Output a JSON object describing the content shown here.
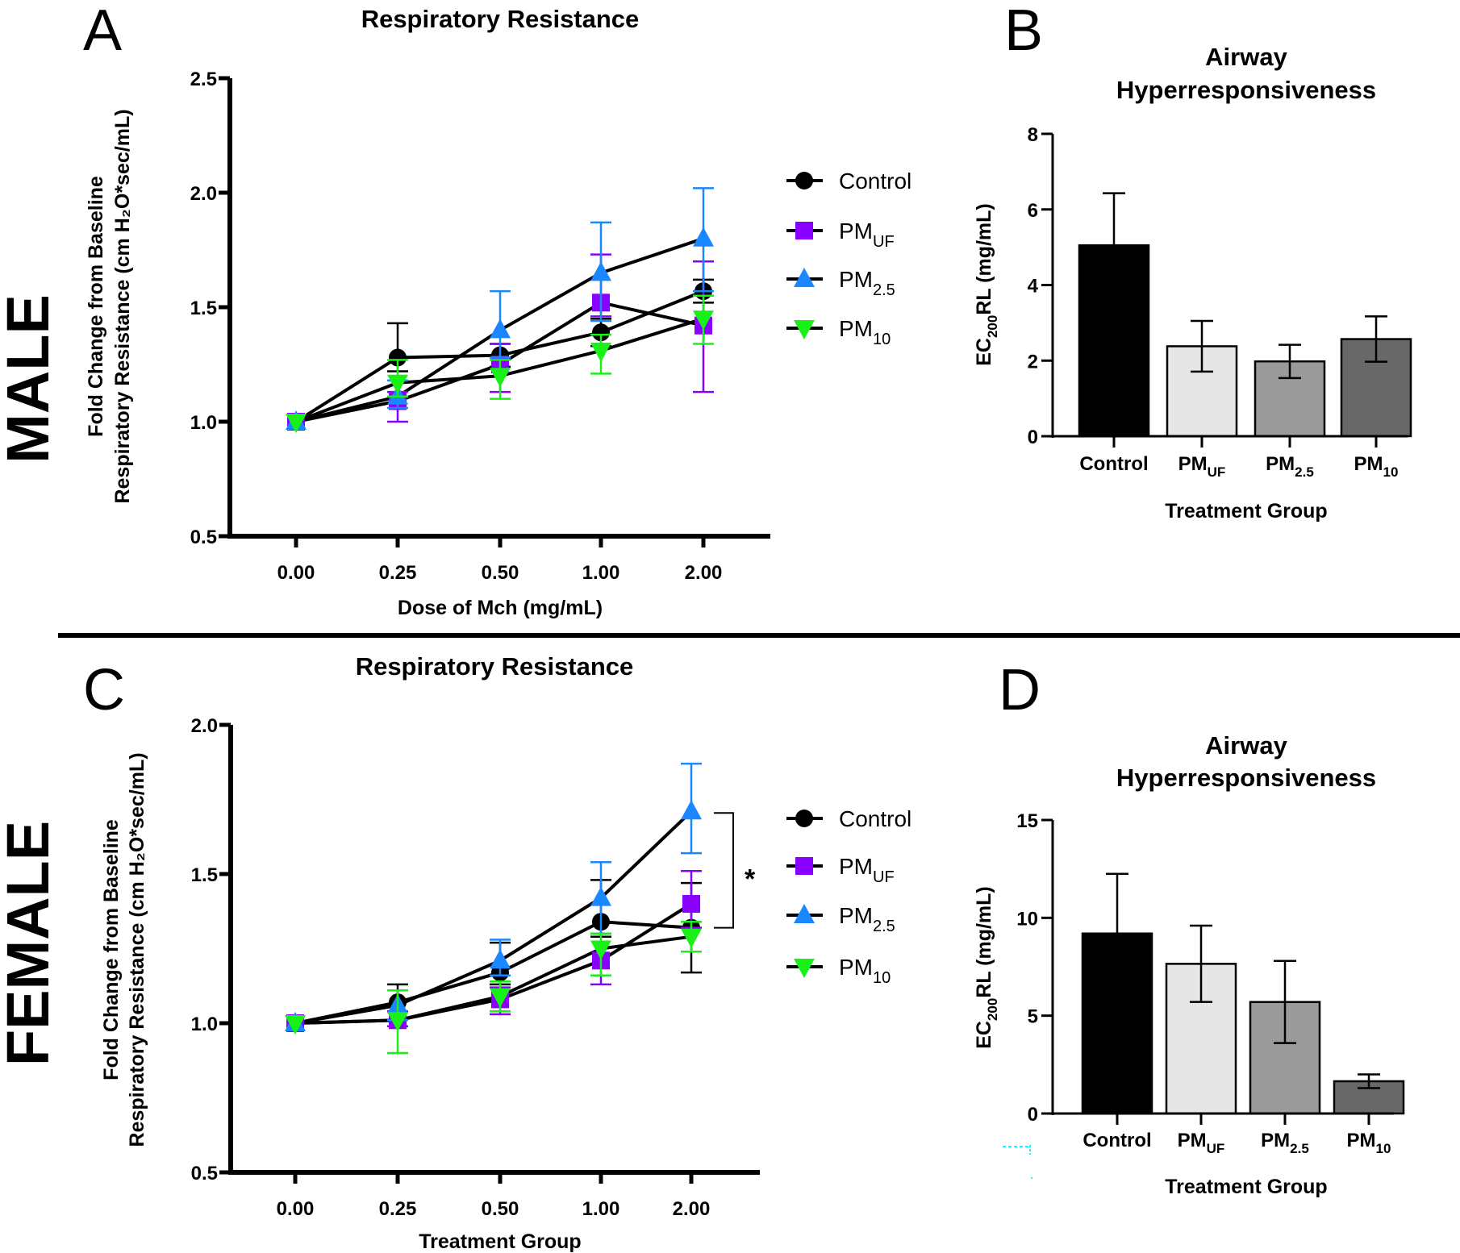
{
  "figure": {
    "panel_letters": [
      "A",
      "B",
      "C",
      "D"
    ],
    "sex_labels": {
      "male": "MALE",
      "female": "FEMALE"
    }
  },
  "colors": {
    "Control": "#000000",
    "PM_UF": "#8a00ff",
    "PM_2.5": "#1a86ff",
    "PM_10": "#18f018",
    "bar_Control": "#000000",
    "bar_PM_UF": "#e6e6e6",
    "bar_PM_2.5": "#9a9a9a",
    "bar_PM_10": "#686868"
  },
  "chart_data": [
    {
      "id": "A",
      "type": "line",
      "title": "Respiratory Resistance",
      "xlabel": "Dose of Mch (mg/mL)",
      "ylabel_line1": "Fold Change from Baseline",
      "ylabel_line2": "Respiratory Resistance (cm H₂O*sec/mL)",
      "categories": [
        "0.00",
        "0.25",
        "0.50",
        "1.00",
        "2.00"
      ],
      "ylim": [
        0.5,
        2.5
      ],
      "yticks": [
        "0.5",
        "1.0",
        "1.5",
        "2.0",
        "2.5"
      ],
      "legend_position": "right",
      "series": [
        {
          "name": "Control",
          "label": "Control",
          "sub": "",
          "marker": "circle",
          "values": [
            1.0,
            1.28,
            1.29,
            1.39,
            1.57
          ],
          "err_up": [
            0,
            0.15,
            0.05,
            0.06,
            0.05
          ],
          "err_down": [
            0,
            0.06,
            0.05,
            0.06,
            0.05
          ]
        },
        {
          "name": "PM_UF",
          "label": "PM",
          "sub": "UF",
          "marker": "square",
          "values": [
            1.0,
            1.09,
            1.25,
            1.52,
            1.42
          ],
          "err_up": [
            0,
            0.04,
            0.09,
            0.21,
            0.28
          ],
          "err_down": [
            0,
            0.09,
            0.12,
            0.06,
            0.29
          ]
        },
        {
          "name": "PM_2.5",
          "label": "PM",
          "sub": "2.5",
          "marker": "triangle-up",
          "values": [
            1.0,
            1.11,
            1.4,
            1.65,
            1.8
          ],
          "err_up": [
            0,
            0.07,
            0.17,
            0.22,
            0.22
          ],
          "err_down": [
            0,
            0.05,
            0.12,
            0.21,
            0.23
          ]
        },
        {
          "name": "PM_10",
          "label": "PM",
          "sub": "10",
          "marker": "triangle-down",
          "values": [
            1.0,
            1.17,
            1.2,
            1.31,
            1.45
          ],
          "err_up": [
            0,
            0.1,
            0.07,
            0.07,
            0.1
          ],
          "err_down": [
            0,
            0.06,
            0.1,
            0.1,
            0.11
          ]
        }
      ]
    },
    {
      "id": "B",
      "type": "bar",
      "title_line1": "Airway",
      "title_line2": "Hyperresponsiveness",
      "xlabel": "Treatment Group",
      "ylabel_main": "EC",
      "ylabel_sub": "200",
      "ylabel_rest": "RL (mg/mL)",
      "categories": [
        {
          "label": "Control",
          "sub": ""
        },
        {
          "label": "PM",
          "sub": "UF"
        },
        {
          "label": "PM",
          "sub": "2.5"
        },
        {
          "label": "PM",
          "sub": "10"
        }
      ],
      "keys": [
        "Control",
        "PM_UF",
        "PM_2.5",
        "PM_10"
      ],
      "values": [
        5.05,
        2.38,
        1.98,
        2.57
      ],
      "errors": [
        1.38,
        0.67,
        0.44,
        0.6
      ],
      "ylim": [
        0,
        8
      ],
      "yticks": [
        "0",
        "2",
        "4",
        "6",
        "8"
      ]
    },
    {
      "id": "C",
      "type": "line",
      "title": "Respiratory Resistance",
      "xlabel": "Treatment Group",
      "ylabel_line1": "Fold Change from Baseline",
      "ylabel_line2": "Respiratory Resistance (cm H₂O*sec/mL)",
      "categories": [
        "0.00",
        "0.25",
        "0.50",
        "1.00",
        "2.00"
      ],
      "ylim": [
        0.5,
        2.0
      ],
      "yticks": [
        "0.5",
        "1.0",
        "1.5",
        "2.0"
      ],
      "legend_position": "right",
      "annotation": {
        "text": "*",
        "between": [
          "PM_2.5",
          "Control"
        ],
        "at": "2.00"
      },
      "series": [
        {
          "name": "Control",
          "label": "Control",
          "sub": "",
          "marker": "circle",
          "values": [
            1.0,
            1.07,
            1.17,
            1.34,
            1.32
          ],
          "err_up": [
            0,
            0.06,
            0.1,
            0.14,
            0.15
          ],
          "err_down": [
            0,
            0.03,
            0.04,
            0.05,
            0.15
          ]
        },
        {
          "name": "PM_UF",
          "label": "PM",
          "sub": "UF",
          "marker": "square",
          "values": [
            1.0,
            1.01,
            1.08,
            1.21,
            1.4
          ],
          "err_up": [
            0,
            0.03,
            0.04,
            0.09,
            0.11
          ],
          "err_down": [
            0,
            0.02,
            0.05,
            0.08,
            0.08
          ]
        },
        {
          "name": "PM_2.5",
          "label": "PM",
          "sub": "2.5",
          "marker": "triangle-up",
          "values": [
            1.0,
            1.06,
            1.21,
            1.42,
            1.71
          ],
          "err_up": [
            0,
            0.05,
            0.07,
            0.12,
            0.16
          ],
          "err_down": [
            0,
            0.05,
            0.05,
            0.12,
            0.14
          ]
        },
        {
          "name": "PM_10",
          "label": "PM",
          "sub": "10",
          "marker": "triangle-down",
          "values": [
            1.0,
            1.01,
            1.09,
            1.25,
            1.29
          ],
          "err_up": [
            0,
            0.1,
            0.05,
            0.05,
            0.05
          ],
          "err_down": [
            0,
            0.11,
            0.05,
            0.09,
            0.05
          ]
        }
      ]
    },
    {
      "id": "D",
      "type": "bar",
      "title_line1": "Airway",
      "title_line2": "Hyperresponsiveness",
      "xlabel": "Treatment Group",
      "ylabel_main": "EC",
      "ylabel_sub": "200",
      "ylabel_rest": "RL (mg/mL)",
      "categories": [
        {
          "label": "Control",
          "sub": ""
        },
        {
          "label": "PM",
          "sub": "UF"
        },
        {
          "label": "PM",
          "sub": "2.5"
        },
        {
          "label": "PM",
          "sub": "10"
        }
      ],
      "keys": [
        "Control",
        "PM_UF",
        "PM_2.5",
        "PM_10"
      ],
      "values": [
        9.2,
        7.65,
        5.7,
        1.65
      ],
      "errors": [
        3.05,
        1.95,
        2.1,
        0.35
      ],
      "ylim": [
        0,
        15
      ],
      "yticks": [
        "0",
        "5",
        "10",
        "15"
      ]
    }
  ]
}
